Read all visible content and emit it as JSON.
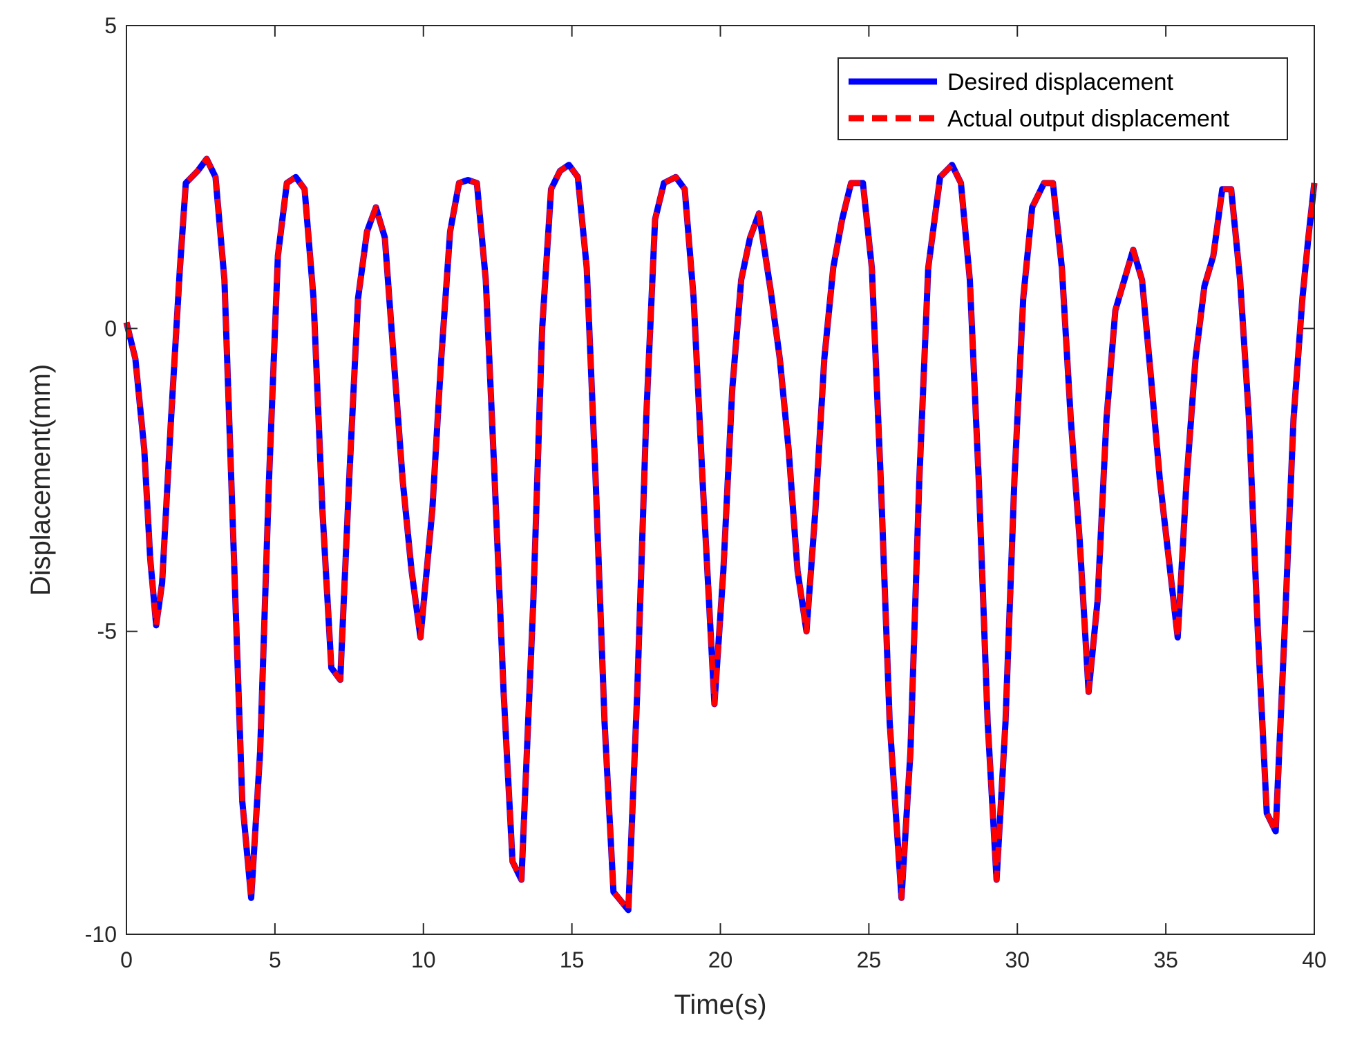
{
  "chart_data": {
    "type": "line",
    "title": "",
    "xlabel": "Time(s)",
    "ylabel": "Displacement(mm)",
    "xlim": [
      0,
      40
    ],
    "ylim": [
      -10,
      5
    ],
    "xticks": [
      0,
      5,
      10,
      15,
      20,
      25,
      30,
      35,
      40
    ],
    "yticks": [
      -10,
      -5,
      0,
      5
    ],
    "xtick_labels": [
      "0",
      "5",
      "10",
      "15",
      "20",
      "25",
      "30",
      "35",
      "40"
    ],
    "ytick_labels": [
      "-10",
      "-5",
      "0",
      "5"
    ],
    "grid": false,
    "legend_position": "top-right",
    "series": [
      {
        "name": "Desired displacement",
        "color": "#0000ff",
        "style": "solid",
        "x": [
          0,
          0.3,
          0.6,
          0.8,
          1.0,
          1.2,
          1.5,
          1.8,
          2.0,
          2.4,
          2.7,
          3.0,
          3.3,
          3.6,
          3.9,
          4.2,
          4.5,
          4.8,
          5.1,
          5.4,
          5.7,
          6.0,
          6.3,
          6.6,
          6.9,
          7.2,
          7.5,
          7.8,
          8.1,
          8.4,
          8.7,
          9.0,
          9.3,
          9.6,
          9.9,
          10.3,
          10.6,
          10.9,
          11.2,
          11.5,
          11.8,
          12.1,
          12.4,
          12.7,
          13.0,
          13.3,
          13.7,
          14.0,
          14.3,
          14.6,
          14.9,
          15.2,
          15.5,
          15.8,
          16.1,
          16.4,
          16.9,
          17.2,
          17.5,
          17.8,
          18.1,
          18.5,
          18.8,
          19.1,
          19.4,
          19.8,
          20.1,
          20.4,
          20.7,
          21.0,
          21.3,
          21.7,
          22.0,
          22.3,
          22.6,
          22.9,
          23.2,
          23.5,
          23.8,
          24.1,
          24.4,
          24.8,
          25.1,
          25.4,
          25.7,
          26.1,
          26.4,
          26.7,
          27.0,
          27.4,
          27.8,
          28.1,
          28.4,
          28.7,
          29.0,
          29.3,
          29.6,
          29.9,
          30.2,
          30.5,
          30.9,
          31.2,
          31.5,
          31.8,
          32.1,
          32.4,
          32.7,
          33.0,
          33.3,
          33.6,
          33.9,
          34.2,
          34.5,
          34.8,
          35.1,
          35.4,
          35.7,
          36.0,
          36.3,
          36.6,
          36.9,
          37.2,
          37.5,
          37.8,
          38.1,
          38.4,
          38.7,
          39.0,
          39.3,
          39.6,
          39.8,
          40.0
        ],
        "y": [
          0.1,
          -0.5,
          -2.0,
          -3.8,
          -4.9,
          -4.2,
          -1.5,
          1.0,
          2.4,
          2.6,
          2.8,
          2.5,
          0.8,
          -3.5,
          -7.8,
          -9.4,
          -7.0,
          -2.5,
          1.2,
          2.4,
          2.5,
          2.3,
          0.5,
          -3.0,
          -5.6,
          -5.8,
          -2.5,
          0.5,
          1.6,
          2.0,
          1.5,
          -0.5,
          -2.5,
          -4.0,
          -5.1,
          -3.0,
          -0.5,
          1.6,
          2.4,
          2.45,
          2.4,
          0.8,
          -2.5,
          -6.0,
          -8.8,
          -9.1,
          -4.5,
          0.0,
          2.3,
          2.6,
          2.7,
          2.5,
          1.0,
          -2.5,
          -6.5,
          -9.3,
          -9.6,
          -6.0,
          -1.5,
          1.8,
          2.4,
          2.5,
          2.3,
          0.5,
          -2.5,
          -6.2,
          -4.0,
          -1.0,
          0.8,
          1.5,
          1.9,
          0.6,
          -0.5,
          -2.0,
          -4.0,
          -5.0,
          -3.0,
          -0.5,
          1.0,
          1.8,
          2.4,
          2.4,
          1.0,
          -2.5,
          -6.5,
          -9.4,
          -7.0,
          -2.5,
          1.0,
          2.5,
          2.7,
          2.4,
          0.8,
          -2.5,
          -6.5,
          -9.1,
          -6.5,
          -2.5,
          0.5,
          2.0,
          2.4,
          2.4,
          1.0,
          -1.5,
          -3.5,
          -6.0,
          -4.5,
          -1.5,
          0.3,
          0.8,
          1.3,
          0.8,
          -0.8,
          -2.5,
          -3.8,
          -5.1,
          -2.5,
          -0.5,
          0.7,
          1.2,
          2.3,
          2.3,
          0.8,
          -1.5,
          -5.0,
          -8.0,
          -8.3,
          -5.0,
          -1.5,
          0.5,
          1.5,
          2.4
        ]
      },
      {
        "name": "Actual output displacement",
        "color": "#ff0000",
        "style": "dashed",
        "x": [
          0,
          0.3,
          0.6,
          0.8,
          1.0,
          1.2,
          1.5,
          1.8,
          2.0,
          2.4,
          2.7,
          3.0,
          3.3,
          3.6,
          3.9,
          4.2,
          4.5,
          4.8,
          5.1,
          5.4,
          5.7,
          6.0,
          6.3,
          6.6,
          6.9,
          7.2,
          7.5,
          7.8,
          8.1,
          8.4,
          8.7,
          9.0,
          9.3,
          9.6,
          9.9,
          10.3,
          10.6,
          10.9,
          11.2,
          11.5,
          11.8,
          12.1,
          12.4,
          12.7,
          13.0,
          13.3,
          13.7,
          14.0,
          14.3,
          14.6,
          14.9,
          15.2,
          15.5,
          15.8,
          16.1,
          16.4,
          16.9,
          17.2,
          17.5,
          17.8,
          18.1,
          18.5,
          18.8,
          19.1,
          19.4,
          19.8,
          20.1,
          20.4,
          20.7,
          21.0,
          21.3,
          21.7,
          22.0,
          22.3,
          22.6,
          22.9,
          23.2,
          23.5,
          23.8,
          24.1,
          24.4,
          24.8,
          25.1,
          25.4,
          25.7,
          26.1,
          26.4,
          26.7,
          27.0,
          27.4,
          27.8,
          28.1,
          28.4,
          28.7,
          29.0,
          29.3,
          29.6,
          29.9,
          30.2,
          30.5,
          30.9,
          31.2,
          31.5,
          31.8,
          32.1,
          32.4,
          32.7,
          33.0,
          33.3,
          33.6,
          33.9,
          34.2,
          34.5,
          34.8,
          35.1,
          35.4,
          35.7,
          36.0,
          36.3,
          36.6,
          36.9,
          37.2,
          37.5,
          37.8,
          38.1,
          38.4,
          38.7,
          39.0,
          39.3,
          39.6,
          39.8,
          40.0
        ],
        "y": [
          0.1,
          -0.5,
          -2.0,
          -3.8,
          -4.9,
          -4.2,
          -1.5,
          1.0,
          2.4,
          2.6,
          2.8,
          2.5,
          0.8,
          -3.5,
          -7.8,
          -9.4,
          -7.0,
          -2.5,
          1.2,
          2.4,
          2.5,
          2.3,
          0.5,
          -3.0,
          -5.6,
          -5.8,
          -2.5,
          0.5,
          1.6,
          2.0,
          1.5,
          -0.5,
          -2.5,
          -4.0,
          -5.1,
          -3.0,
          -0.5,
          1.6,
          2.4,
          2.45,
          2.4,
          0.8,
          -2.5,
          -6.0,
          -8.8,
          -9.1,
          -4.5,
          0.0,
          2.3,
          2.6,
          2.7,
          2.5,
          1.0,
          -2.5,
          -6.5,
          -9.3,
          -9.6,
          -6.0,
          -1.5,
          1.8,
          2.4,
          2.5,
          2.3,
          0.5,
          -2.5,
          -6.2,
          -4.0,
          -1.0,
          0.8,
          1.5,
          1.9,
          0.6,
          -0.5,
          -2.0,
          -4.0,
          -5.0,
          -3.0,
          -0.5,
          1.0,
          1.8,
          2.4,
          2.4,
          1.0,
          -2.5,
          -6.5,
          -9.4,
          -7.0,
          -2.5,
          1.0,
          2.5,
          2.7,
          2.4,
          0.8,
          -2.5,
          -6.5,
          -9.1,
          -6.5,
          -2.5,
          0.5,
          2.0,
          2.4,
          2.4,
          1.0,
          -1.5,
          -3.5,
          -6.0,
          -4.5,
          -1.5,
          0.3,
          0.8,
          1.3,
          0.8,
          -0.8,
          -2.5,
          -3.8,
          -5.1,
          -2.5,
          -0.5,
          0.7,
          1.2,
          2.3,
          2.3,
          0.8,
          -1.5,
          -5.0,
          -8.0,
          -8.3,
          -5.0,
          -1.5,
          0.5,
          1.5,
          2.4
        ]
      }
    ]
  }
}
